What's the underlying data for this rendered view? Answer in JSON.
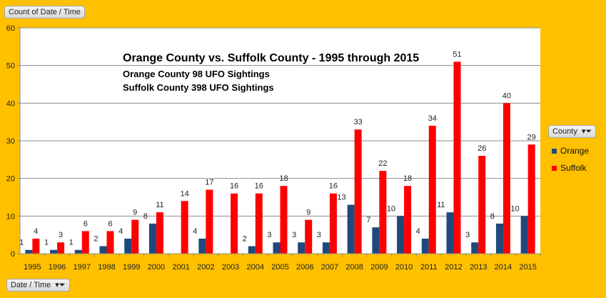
{
  "field_buttons": {
    "values": "Count of Date / Time",
    "axis": "Date / Time",
    "legend": "County"
  },
  "colors": {
    "Orange": "#1F497D",
    "Suffolk": "#FF0000",
    "background": "#FFC000"
  },
  "chart_data": {
    "type": "bar",
    "title": "Orange County vs. Suffolk County - 1995 through 2015",
    "subtitles": [
      "Orange County 98 UFO Sightings",
      "Suffolk County 398 UFO Sightings"
    ],
    "xlabel": "",
    "ylabel": "",
    "ylim": [
      0,
      60
    ],
    "yticks": [
      "0",
      "10",
      "20",
      "30",
      "40",
      "50",
      "60"
    ],
    "grid": true,
    "legend_position": "right",
    "categories": [
      "1995",
      "1996",
      "1997",
      "1998",
      "1999",
      "2000",
      "2001",
      "2002",
      "2003",
      "2004",
      "2005",
      "2006",
      "2007",
      "2008",
      "2009",
      "2010",
      "2011",
      "2012",
      "2013",
      "2014",
      "2015"
    ],
    "series": [
      {
        "name": "Orange",
        "values": [
          1,
          1,
          1,
          2,
          4,
          8,
          null,
          4,
          null,
          2,
          3,
          3,
          3,
          13,
          7,
          10,
          4,
          11,
          3,
          8,
          10
        ]
      },
      {
        "name": "Suffolk",
        "values": [
          4,
          3,
          6,
          6,
          9,
          11,
          14,
          17,
          16,
          16,
          18,
          9,
          16,
          33,
          22,
          18,
          34,
          51,
          26,
          40,
          29
        ]
      }
    ]
  }
}
